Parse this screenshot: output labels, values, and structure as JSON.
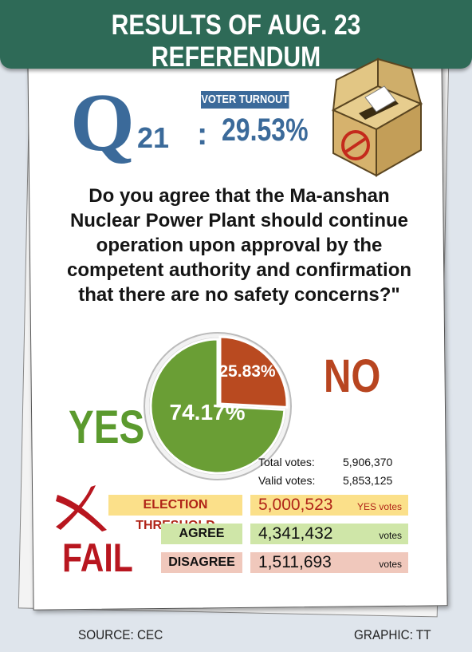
{
  "header": {
    "title": "RESULTS OF AUG. 23 REFERENDUM"
  },
  "question": {
    "letter": "Q",
    "number": "21",
    "colon": ":",
    "text": "Do you agree that the Ma-anshan Nuclear Power Plant should continue operation upon approval by the competent authority and confirmation that there are no safety concerns?\""
  },
  "turnout": {
    "label": "VOTER TURNOUT",
    "value": "29.53%"
  },
  "result": {
    "yes_label": "YES",
    "no_label": "NO",
    "yes_percent": "74.17%",
    "no_percent": "25.83%",
    "yes_share": 74.17,
    "no_share": 25.83,
    "yes_color": "#6a9e35",
    "no_color": "#b94a20"
  },
  "totals": [
    {
      "label": "Total votes:",
      "value": "5,906,370"
    },
    {
      "label": "Valid votes:",
      "value": "5,853,125"
    }
  ],
  "outcome": {
    "word": "FAIL",
    "color": "#b8161f",
    "icon": "red-cross-icon"
  },
  "table": [
    {
      "label": "ELECTION THRESHOLD",
      "value": "5,000,523",
      "unit": "YES votes",
      "label_bg": "#fbe08a",
      "label_color": "#b02418",
      "value_bg": "#fbe08a",
      "value_color": "#b02418"
    },
    {
      "label": "AGREE",
      "value": "4,341,432",
      "unit": "votes",
      "label_bg": "#cfe6a8",
      "label_color": "#111111",
      "value_bg": "#cfe6a8",
      "value_color": "#111111"
    },
    {
      "label": "DISAGREE",
      "value": "1,511,693",
      "unit": "votes",
      "label_bg": "#f0c8bc",
      "label_color": "#111111",
      "value_bg": "#f0c8bc",
      "value_color": "#111111"
    }
  ],
  "footer": {
    "source": "SOURCE: CEC",
    "credit": "GRAPHIC: TT"
  }
}
